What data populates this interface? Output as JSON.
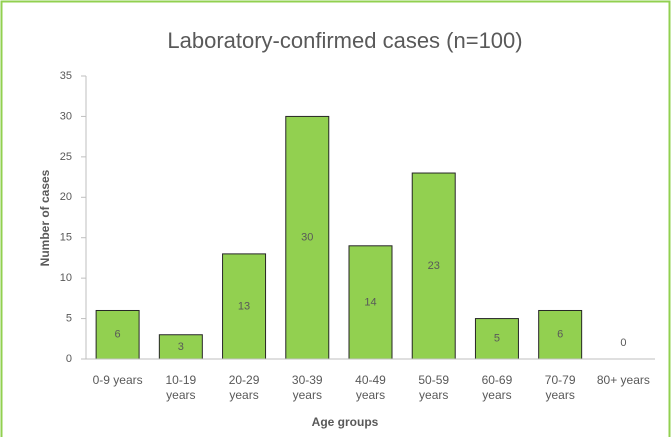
{
  "chart_data": {
    "type": "bar",
    "title": "Laboratory-confirmed cases (n=100)",
    "xlabel": "Age groups",
    "ylabel": "Number of cases",
    "categories": [
      "0-9 years",
      "10-19 years",
      "20-29 years",
      "30-39 years",
      "40-49 years",
      "50-59 years",
      "60-69 years",
      "70-79 years",
      "80+ years"
    ],
    "values": [
      6,
      3,
      13,
      30,
      14,
      23,
      5,
      6,
      0
    ],
    "color": "#92d050",
    "ylim": [
      0,
      35
    ],
    "yticks": [
      0,
      5,
      10,
      15,
      20,
      25,
      30,
      35
    ],
    "grid": false
  }
}
